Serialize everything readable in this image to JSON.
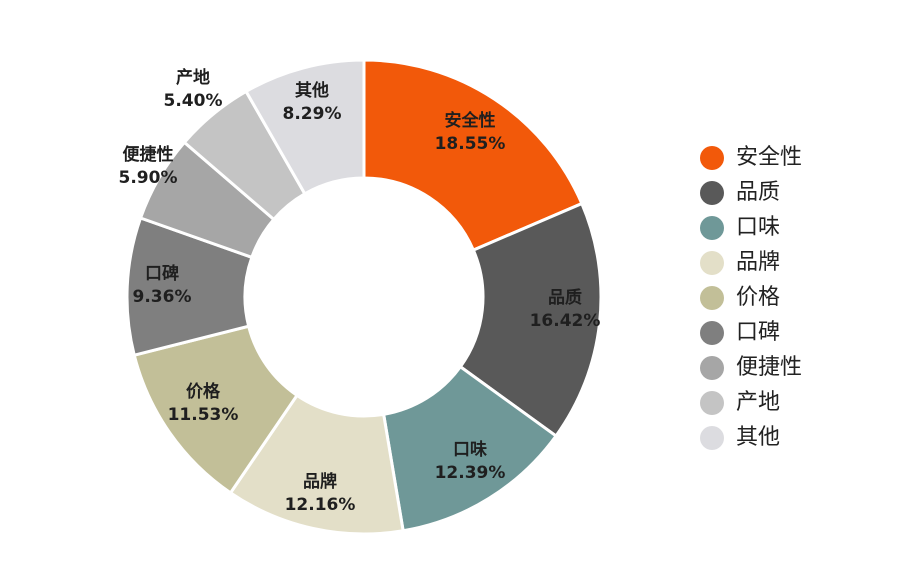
{
  "chart_data": {
    "type": "pie",
    "donut": true,
    "legend_position": "right",
    "slices": [
      {
        "label": "安全性",
        "value": 18.55,
        "value_text": "18.55%",
        "color": "#f2590a"
      },
      {
        "label": "品质",
        "value": 16.42,
        "value_text": "16.42%",
        "color": "#595959"
      },
      {
        "label": "口味",
        "value": 12.39,
        "value_text": "12.39%",
        "color": "#6f9898"
      },
      {
        "label": "品牌",
        "value": 12.16,
        "value_text": "12.16%",
        "color": "#e3dfc8"
      },
      {
        "label": "价格",
        "value": 11.53,
        "value_text": "11.53%",
        "color": "#c2bf98"
      },
      {
        "label": "口碑",
        "value": 9.36,
        "value_text": "9.36%",
        "color": "#7f7f7f"
      },
      {
        "label": "便捷性",
        "value": 5.9,
        "value_text": "5.90%",
        "color": "#a6a6a6"
      },
      {
        "label": "产地",
        "value": 5.4,
        "value_text": "5.40%",
        "color": "#c4c4c4"
      },
      {
        "label": "其他",
        "value": 8.29,
        "value_text": "8.29%",
        "color": "#dcdce0"
      }
    ]
  }
}
